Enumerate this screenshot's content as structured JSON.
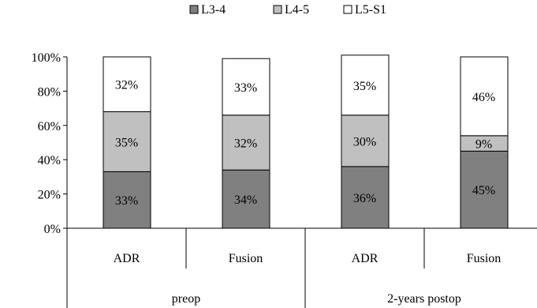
{
  "chart_data": {
    "type": "bar",
    "stacked": true,
    "percent_stacked": true,
    "title": "",
    "xlabel": "",
    "ylabel": "",
    "ylim": [
      0,
      100
    ],
    "ytick_values": [
      0,
      20,
      40,
      60,
      80,
      100
    ],
    "ytick_labels": [
      "0%",
      "20%",
      "40%",
      "60%",
      "80%",
      "100%"
    ],
    "categories": [
      "ADR",
      "Fusion",
      "ADR",
      "Fusion"
    ],
    "groups": [
      {
        "label": "preop",
        "categories": [
          "ADR",
          "Fusion"
        ]
      },
      {
        "label": "2-years postop",
        "categories": [
          "ADR",
          "Fusion"
        ]
      }
    ],
    "legend_position": "top-center",
    "grid": false,
    "series": [
      {
        "name": "L3-4",
        "color": "#808080",
        "values": [
          33,
          34,
          36,
          45
        ],
        "labels": [
          "33%",
          "34%",
          "36%",
          "45%"
        ]
      },
      {
        "name": "L4-5",
        "color": "#c0c0c0",
        "values": [
          35,
          32,
          30,
          9
        ],
        "labels": [
          "35%",
          "32%",
          "30%",
          "9%"
        ]
      },
      {
        "name": "L5-S1",
        "color": "#ffffff",
        "values": [
          32,
          33,
          35,
          46
        ],
        "labels": [
          "32%",
          "33%",
          "35%",
          "46%"
        ]
      }
    ]
  }
}
